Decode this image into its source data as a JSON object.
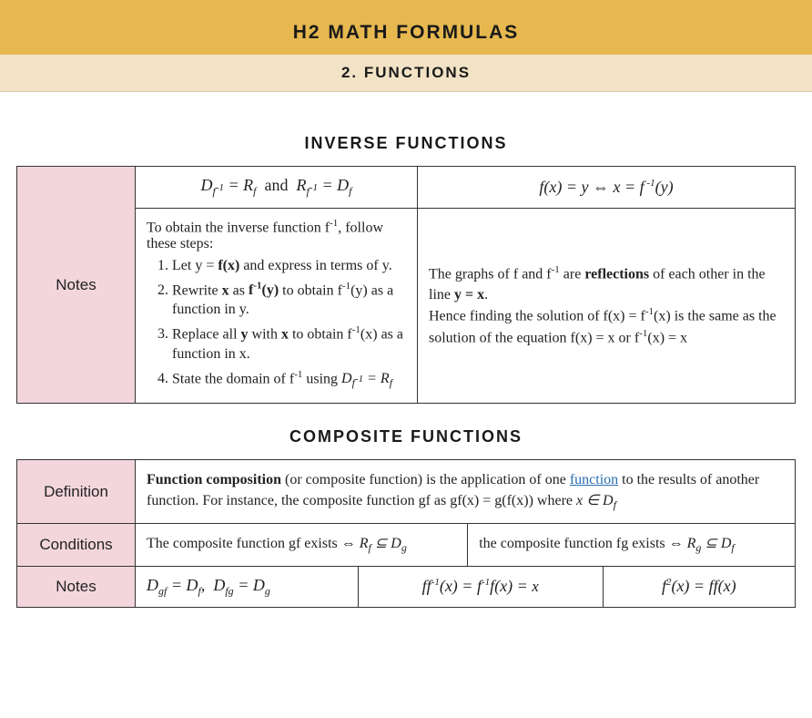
{
  "colors": {
    "banner_main_bg": "#e6b84f",
    "banner_sub_bg": "#f3e3c6",
    "row_label_bg": "#f3d6dd",
    "border": "#333333",
    "link": "#2a6db0",
    "text": "#1a1a1a",
    "background": "#ffffff"
  },
  "banner": {
    "main": "H2 MATH FORMULAS",
    "sub": "2. FUNCTIONS"
  },
  "inverse": {
    "heading": "INVERSE FUNCTIONS",
    "row_label": "Notes",
    "formula_left_html": "D<sub>f<sup>-1</sup></sub> = R<sub>f</sub>&nbsp; <span class=\"upright\">and</span> &nbsp;R<sub>f<sup>-1</sup></sub> = D<sub>f</sub>",
    "formula_right_html": "f(x) = y ⇔ x = f<sup>&nbsp;-1</sup>(y)",
    "steps_intro_html": "To obtain the inverse function f<sup>-1</sup>, follow these steps:",
    "steps": [
      "Let y = <b>f(x)</b> and express in terms of y.",
      "Rewrite <b>x</b> as <b>f<sup>-1</sup>(y)</b> to obtain f<sup>-1</sup>(y) as a function in y.",
      "Replace all <b>y</b> with <b>x</b> to obtain f<sup>-1</sup>(x) as a function in x.",
      "State the domain of f<sup>-1</sup> using <i>D<sub>f<sup>-1</sup></sub> = R<sub>f</sub></i>"
    ],
    "reflection_html": "The graphs of f and f<sup>-1</sup> are <b>reflections</b> of each other in the line <b>y = x</b>.<br>Hence finding the solution of f(x) = f<sup>-1</sup>(x) is the same as the solution of the equation f(x) = x or f<sup>-1</sup>(x) = x"
  },
  "composite": {
    "heading": "COMPOSITE FUNCTIONS",
    "rows": {
      "definition_label": "Definition",
      "conditions_label": "Conditions",
      "notes_label": "Notes"
    },
    "definition_html": "<b>Function composition</b> (or composite function) is the application of one <span class=\"link\">function</span> to the results of another function. For instance, the composite function gf as gf(x) = g(f(x)) where <i>x ∈ D<sub>f</sub></i>",
    "condition_left_html": "The composite function gf exists ⇔ <i>R<sub>f</sub> ⊆ D<sub>g</sub></i>",
    "condition_right_html": "the composite function fg exists ⇔ <i>R<sub>g</sub> ⊆ D<sub>f</sub></i>",
    "note_domains_html": "D<sub>gf</sub> = D<sub>f</sub>,&nbsp; D<sub>fg</sub> = D<sub>g</sub>",
    "note_identity_html": "ff<sup>-1</sup>(x) = f<sup>-1</sup>f(x) = <span class=\"math-left\">x</span>",
    "note_square_html": "f<sup>2</sup>(x) = ff(x)"
  }
}
